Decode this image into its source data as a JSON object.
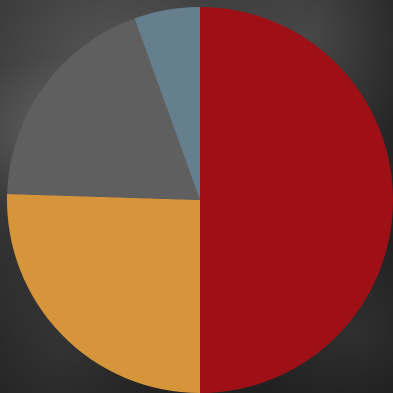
{
  "chart_data": {
    "type": "pie",
    "title": "",
    "start_angle_deg": 0,
    "direction": "clockwise",
    "slices": [
      {
        "value": 50,
        "color": "#9e1016"
      },
      {
        "value": 25.5,
        "color": "#d6953b"
      },
      {
        "value": 19,
        "color": "#5f5f5f"
      },
      {
        "value": 5.5,
        "color": "#667f8e"
      }
    ]
  },
  "colors": {
    "background": "#2a2a2a"
  }
}
